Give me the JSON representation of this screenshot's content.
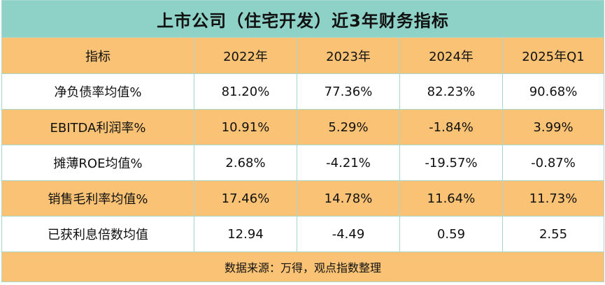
{
  "title": "上市公司（住宅开发）近3年财务指标",
  "columns": [
    "指标",
    "2022年",
    "2023年",
    "2024年",
    "2025年Q1"
  ],
  "rows": [
    {
      "label": "净负债率均值%",
      "values": [
        "81.20%",
        "77.36%",
        "82.23%",
        "90.68%"
      ]
    },
    {
      "label": "EBITDA利润率%",
      "values": [
        "10.91%",
        "5.29%",
        "-1.84%",
        "3.99%"
      ]
    },
    {
      "label": "摊薄ROE均值%",
      "values": [
        "2.68%",
        "-4.21%",
        "-19.57%",
        "-0.87%"
      ]
    },
    {
      "label": "销售毛利率均值%",
      "values": [
        "17.46%",
        "14.78%",
        "11.64%",
        "11.73%"
      ]
    },
    {
      "label": "已获利息倍数均值",
      "values": [
        "12.94",
        "-4.49",
        "0.59",
        "2.55"
      ]
    }
  ],
  "footer": "数据来源：万得，观点指数整理",
  "colors": {
    "title_bg": "#8ed2c7",
    "orange": "#fac274",
    "white": "#ffffff",
    "border": "#a7d8cf"
  }
}
